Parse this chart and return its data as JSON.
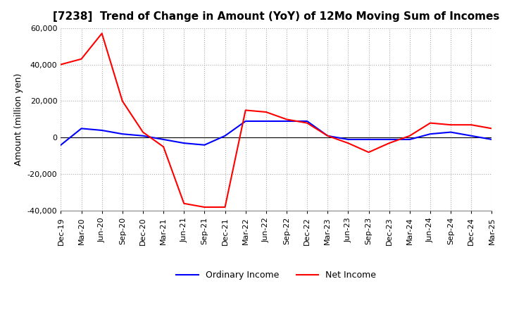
{
  "title": "[7238]  Trend of Change in Amount (YoY) of 12Mo Moving Sum of Incomes",
  "ylabel": "Amount (million yen)",
  "ylim": [
    -40000,
    60000
  ],
  "yticks": [
    -40000,
    -20000,
    0,
    20000,
    40000,
    60000
  ],
  "background_color": "#ffffff",
  "grid_color": "#aaaaaa",
  "dates": [
    "Dec-19",
    "Mar-20",
    "Jun-20",
    "Sep-20",
    "Dec-20",
    "Mar-21",
    "Jun-21",
    "Sep-21",
    "Dec-21",
    "Mar-22",
    "Jun-22",
    "Sep-22",
    "Dec-22",
    "Mar-23",
    "Jun-23",
    "Sep-23",
    "Dec-23",
    "Mar-24",
    "Jun-24",
    "Sep-24",
    "Dec-24",
    "Mar-25"
  ],
  "ordinary_income": [
    -4000,
    5000,
    4000,
    2000,
    1000,
    -1000,
    -3000,
    -4000,
    1000,
    9000,
    9000,
    9000,
    9000,
    1000,
    -1000,
    -1000,
    -1000,
    -1000,
    2000,
    3000,
    1000,
    -1000
  ],
  "net_income": [
    40000,
    43000,
    57000,
    20000,
    3000,
    -5000,
    -36000,
    -38000,
    -38000,
    15000,
    14000,
    10000,
    8000,
    1000,
    -3000,
    -8000,
    -3000,
    1000,
    8000,
    7000,
    7000,
    5000
  ],
  "ordinary_income_color": "#0000ff",
  "net_income_color": "#ff0000",
  "line_width": 1.5,
  "title_fontsize": 11,
  "tick_fontsize": 8,
  "label_fontsize": 9
}
